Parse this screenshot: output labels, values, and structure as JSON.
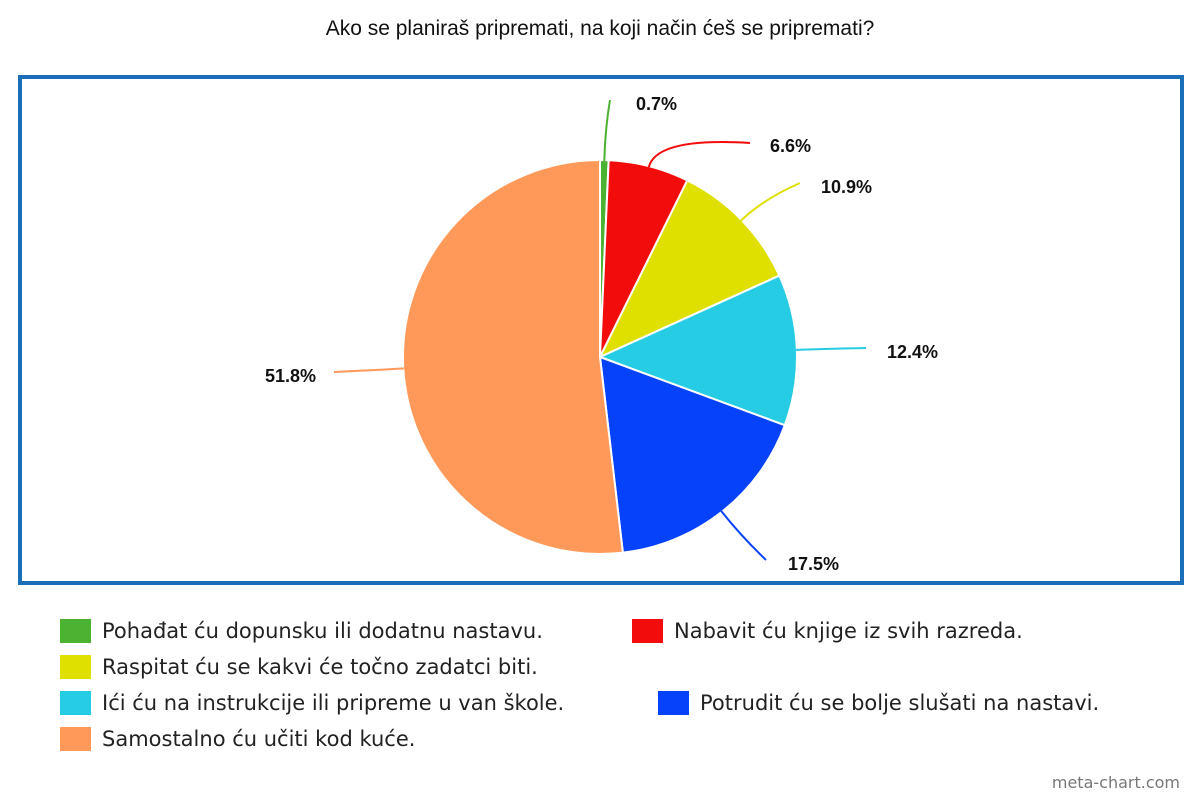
{
  "chart_data": {
    "type": "pie",
    "title": "Ako se planiraš pripremati, na koji način ćeš se pripremati?",
    "slices": [
      {
        "label": "Pohađat ću dopunsku ili dodatnu nastavu.",
        "value": 0.7,
        "value_label": "0.7%",
        "color": "#4cb232"
      },
      {
        "label": "Nabavit ću knjige iz svih razreda.",
        "value": 6.6,
        "value_label": "6.6%",
        "color": "#f30c0c"
      },
      {
        "label": "Raspitat ću se kakvi će točno zadatci biti.",
        "value": 10.9,
        "value_label": "10.9%",
        "color": "#dfe000"
      },
      {
        "label": "Ići ću na instrukcije ili pripreme u van škole.",
        "value": 12.4,
        "value_label": "12.4%",
        "color": "#26cce4"
      },
      {
        "label": "Potrudit ću se bolje slušati na nastavi.",
        "value": 17.5,
        "value_label": "17.5%",
        "color": "#0742fb"
      },
      {
        "label": "Samostalno ću učiti kod kuće.",
        "value": 51.8,
        "value_label": "51.8%",
        "color": "#ff995a"
      }
    ],
    "legend_position": "bottom"
  },
  "footer": {
    "watermark": "meta-chart.com"
  }
}
